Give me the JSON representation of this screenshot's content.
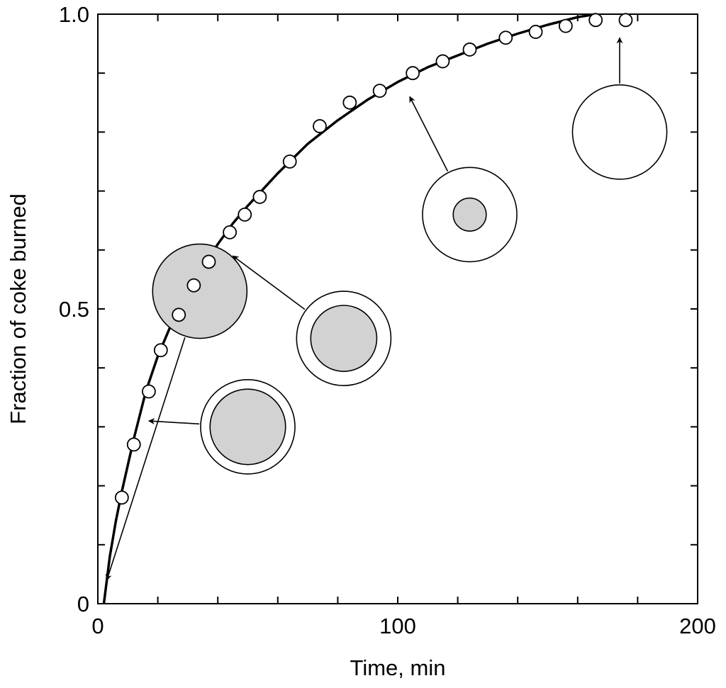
{
  "chart_data": {
    "type": "scatter",
    "title": "",
    "xlabel": "Time, min",
    "ylabel": "Fraction of coke burned",
    "xlim": [
      0,
      200
    ],
    "ylim": [
      0,
      1.0
    ],
    "x_ticks": [
      0,
      100,
      200
    ],
    "x_tick_labels": [
      "0",
      "100",
      "200"
    ],
    "y_ticks": [
      0,
      0.5,
      1.0
    ],
    "y_tick_labels": [
      "0",
      "0.5",
      "1.0"
    ],
    "grid": false,
    "series": [
      {
        "kind": "points",
        "x": [
          8,
          12,
          17,
          21,
          27,
          32,
          37,
          44,
          49,
          54,
          64,
          74,
          84,
          94,
          105,
          115,
          124,
          136,
          146,
          156,
          166,
          176
        ],
        "y": [
          0.18,
          0.27,
          0.36,
          0.43,
          0.49,
          0.54,
          0.58,
          0.63,
          0.66,
          0.69,
          0.75,
          0.81,
          0.85,
          0.87,
          0.9,
          0.92,
          0.94,
          0.96,
          0.97,
          0.98,
          0.99,
          0.99
        ]
      },
      {
        "kind": "curve",
        "x": [
          2,
          4,
          6,
          8,
          12,
          16,
          20,
          25,
          30,
          35,
          40,
          45,
          50,
          60,
          70,
          80,
          90,
          100,
          110,
          120,
          130,
          140,
          150,
          160,
          166
        ],
        "y": [
          0,
          0.08,
          0.14,
          0.19,
          0.28,
          0.36,
          0.42,
          0.48,
          0.53,
          0.57,
          0.61,
          0.645,
          0.675,
          0.73,
          0.78,
          0.82,
          0.855,
          0.885,
          0.91,
          0.93,
          0.95,
          0.967,
          0.982,
          0.995,
          1.0
        ]
      }
    ],
    "particle_annotations": [
      {
        "at_x": 34,
        "at_y": 0.53,
        "label_x": 3,
        "label_y": 0.04,
        "core_fraction": 1.0
      },
      {
        "at_x": 50,
        "at_y": 0.3,
        "label_x": 17,
        "label_y": 0.31,
        "core_fraction": 0.8
      },
      {
        "at_x": 82,
        "at_y": 0.45,
        "label_x": 45,
        "label_y": 0.59,
        "core_fraction": 0.7
      },
      {
        "at_x": 124,
        "at_y": 0.66,
        "label_x": 104,
        "label_y": 0.86,
        "core_fraction": 0.35
      },
      {
        "at_x": 174,
        "at_y": 0.8,
        "label_x": 174,
        "label_y": 0.96,
        "core_fraction": 0
      }
    ],
    "colors": {
      "core": "#d2d2d2",
      "marker_fill": "#ffffff",
      "line": "#000000"
    }
  }
}
